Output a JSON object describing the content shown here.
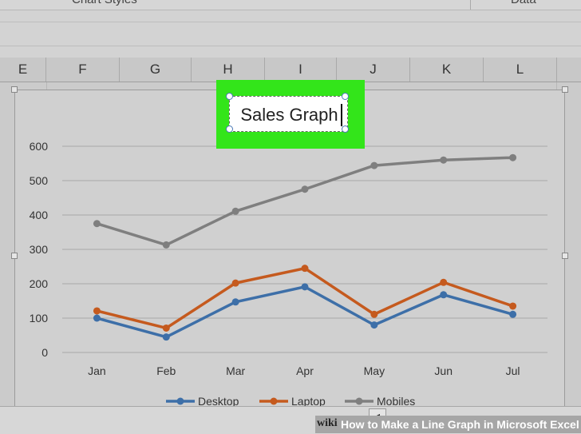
{
  "ribbon": {
    "chart_styles_label": "Chart Styles",
    "data_label": "Data"
  },
  "columns": [
    "E",
    "F",
    "G",
    "H",
    "I",
    "J",
    "K",
    "L"
  ],
  "scroll_left_glyph": "◂",
  "caption": {
    "brand": "wiki",
    "text": "How to Make a Line Graph in Microsoft Excel"
  },
  "chart_data": {
    "type": "line",
    "title": "Sales Graph",
    "categories": [
      "Jan",
      "Feb",
      "Mar",
      "Apr",
      "May",
      "Jun",
      "Jul"
    ],
    "ylim": [
      0,
      600
    ],
    "yticks": [
      0,
      100,
      200,
      300,
      400,
      500,
      600
    ],
    "grid": true,
    "legend": "bottom",
    "series": [
      {
        "name": "Desktop",
        "color": "#3d6fa8",
        "values": [
          100,
          45,
          147,
          191,
          80,
          168,
          111
        ]
      },
      {
        "name": "Laptop",
        "color": "#c55a1e",
        "values": [
          121,
          71,
          202,
          245,
          111,
          204,
          135
        ]
      },
      {
        "name": "Mobiles",
        "color": "#7f7f7f",
        "values": [
          375,
          313,
          411,
          475,
          544,
          560,
          567
        ]
      }
    ]
  }
}
